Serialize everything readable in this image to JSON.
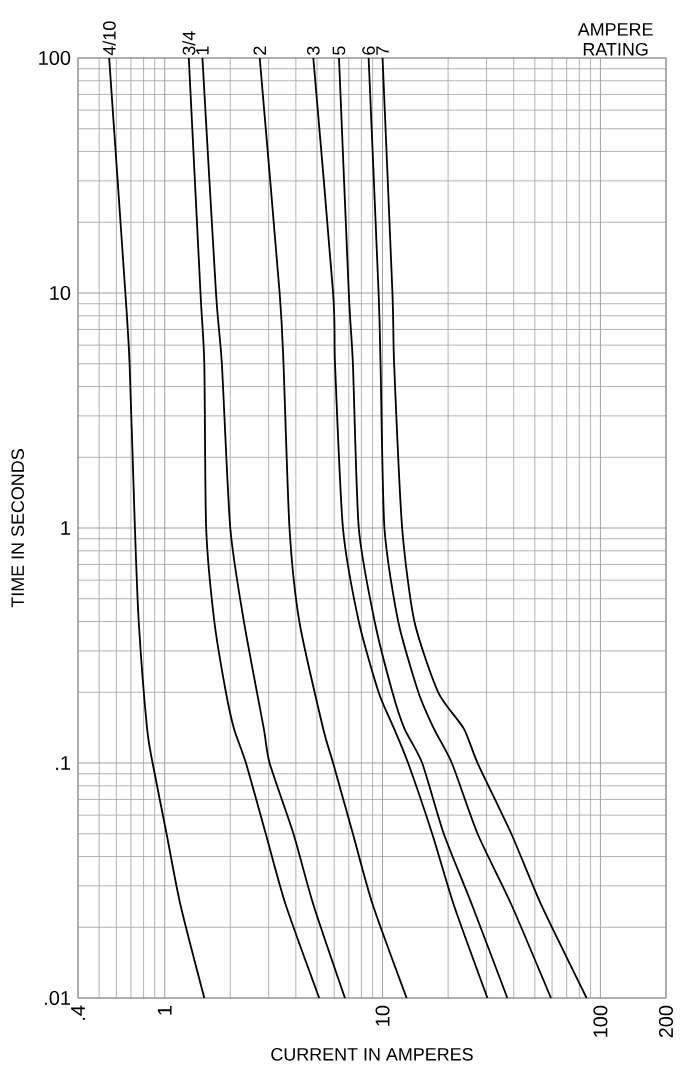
{
  "chart_data": {
    "type": "line",
    "xlabel": "CURRENT IN AMPERES",
    "ylabel": "TIME IN SECONDS",
    "annotations": [
      "AMPERE RATING"
    ],
    "log": "xy",
    "grid": true,
    "marker": "none",
    "line_style": "solid",
    "xlim": [
      0.4,
      200
    ],
    "ylim": [
      0.01,
      100
    ],
    "xticks": [
      {
        "value": 0.4,
        "label": ".4"
      },
      1,
      10,
      100,
      200
    ],
    "yticks": [
      {
        "value": 0.01,
        "label": ".01"
      },
      {
        "value": 0.1,
        "label": ".1"
      },
      1,
      10,
      100
    ],
    "series": [
      {
        "name": "4/10",
        "color": "#000000",
        "x": [
          0.556,
          0.66,
          0.69,
          0.73,
          0.76,
          0.83,
          0.88,
          1.02,
          1.18,
          1.52
        ],
        "values": [
          100,
          10,
          5,
          1,
          0.4,
          0.14,
          0.1,
          0.05,
          0.025,
          0.01
        ]
      },
      {
        "name": "3/4",
        "color": "#000000",
        "x": [
          1.29,
          1.46,
          1.52,
          1.55,
          1.69,
          1.91,
          2.08,
          2.36,
          2.91,
          3.59,
          5.12
        ],
        "values": [
          100,
          10,
          5,
          1,
          0.4,
          0.2,
          0.14,
          0.1,
          0.05,
          0.025,
          0.01
        ]
      },
      {
        "name": "1",
        "color": "#000000",
        "x": [
          1.49,
          1.72,
          1.83,
          2.0,
          2.31,
          2.85,
          3.03,
          3.9,
          4.81,
          6.72
        ],
        "values": [
          100,
          10,
          5,
          1,
          0.4,
          0.14,
          0.1,
          0.05,
          0.025,
          0.01
        ]
      },
      {
        "name": "2",
        "color": "#000000",
        "x": [
          2.73,
          3.37,
          3.51,
          3.74,
          4.15,
          5.34,
          5.93,
          7.31,
          9.01,
          12.9
        ],
        "values": [
          100,
          10,
          5,
          1,
          0.4,
          0.14,
          0.1,
          0.05,
          0.025,
          0.01
        ]
      },
      {
        "name": "3",
        "color": "#000000",
        "x": [
          4.81,
          5.93,
          6.05,
          6.58,
          7.78,
          9.59,
          11.3,
          13.1,
          16.9,
          21.2,
          30.3
        ],
        "values": [
          100,
          10,
          5,
          1,
          0.4,
          0.2,
          0.14,
          0.1,
          0.05,
          0.025,
          0.01
        ]
      },
      {
        "name": "5",
        "color": "#000000",
        "x": [
          6.31,
          7.0,
          7.31,
          7.78,
          9.2,
          11.1,
          12.6,
          15.2,
          19.1,
          25.7,
          37.4
        ],
        "values": [
          100,
          10,
          5,
          1,
          0.4,
          0.2,
          0.14,
          0.1,
          0.05,
          0.025,
          0.01
        ]
      },
      {
        "name": "6",
        "color": "#000000",
        "x": [
          8.63,
          9.59,
          9.79,
          10.2,
          11.8,
          14.6,
          17.2,
          20.8,
          27.3,
          39.0,
          59.3
        ],
        "values": [
          100,
          10,
          5,
          1,
          0.4,
          0.2,
          0.14,
          0.1,
          0.05,
          0.025,
          0.01
        ]
      },
      {
        "name": "7",
        "color": "#000000",
        "x": [
          10.0,
          11.1,
          11.3,
          12.3,
          14.0,
          18.0,
          23.6,
          27.3,
          39.0,
          53.4,
          86.4
        ],
        "values": [
          100,
          10,
          5,
          1,
          0.4,
          0.2,
          0.14,
          0.1,
          0.05,
          0.025,
          0.01
        ]
      }
    ]
  }
}
